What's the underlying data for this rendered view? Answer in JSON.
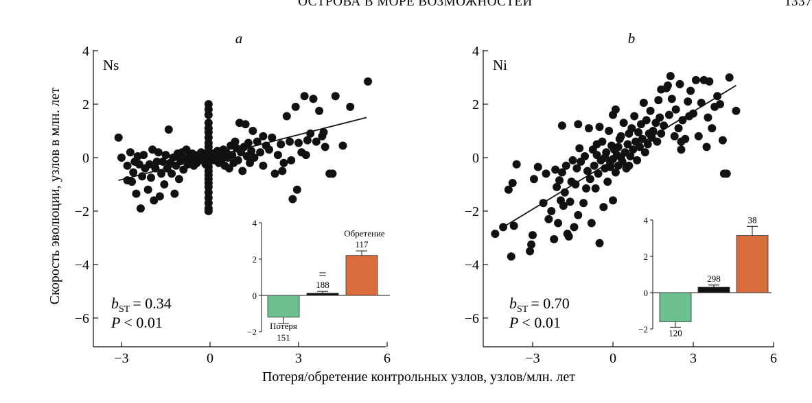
{
  "header": {
    "running_title": "ОСТРОВА В МОРЕ ВОЗМОЖНОСТЕЙ",
    "page_number": "1337"
  },
  "axes": {
    "ylabel": "Скорость эволюции, узлов в млн. лет",
    "xlabel": "Потеря/обретение контрольных узлов, узлов/млн. лет"
  },
  "colors": {
    "points": "#111111",
    "loss": "#6cc18f",
    "gain": "#d96c3b",
    "neutral": "#111111"
  },
  "chart_data": [
    {
      "type": "scatter",
      "panel_letter": "a",
      "panel_id": "Ns",
      "xlim": [
        -4,
        6
      ],
      "ylim": [
        -7,
        4
      ],
      "xticks": [
        "−3",
        "0",
        "3",
        "6"
      ],
      "xtick_values": [
        -3,
        0,
        3,
        6
      ],
      "yticks": [
        "4",
        "2",
        "0",
        "−2",
        "−4",
        "−6"
      ],
      "ytick_values": [
        4,
        2,
        0,
        -2,
        -4,
        -6
      ],
      "stat_b_sub": "ST",
      "stat_b_value": "= 0.34",
      "stat_p_value": "< 0.01",
      "fit_line": [
        [
          -3.1,
          -0.85
        ],
        [
          5.3,
          1.5
        ]
      ],
      "points": [
        [
          -3.1,
          0.75
        ],
        [
          -3.0,
          0.0
        ],
        [
          -2.8,
          -0.85
        ],
        [
          -2.8,
          -0.3
        ],
        [
          -2.7,
          0.2
        ],
        [
          -2.65,
          -0.9
        ],
        [
          -2.6,
          -0.55
        ],
        [
          -2.55,
          -0.15
        ],
        [
          -2.5,
          -1.35
        ],
        [
          -2.45,
          0.05
        ],
        [
          -2.4,
          -0.25
        ],
        [
          -2.35,
          -1.9
        ],
        [
          -2.3,
          -0.7
        ],
        [
          -2.25,
          0.1
        ],
        [
          -2.2,
          -0.4
        ],
        [
          -2.1,
          -1.2
        ],
        [
          -2.05,
          -0.25
        ],
        [
          -2.0,
          -0.75
        ],
        [
          -1.95,
          0.3
        ],
        [
          -1.9,
          -1.6
        ],
        [
          -1.85,
          -0.4
        ],
        [
          -1.8,
          -0.15
        ],
        [
          -1.75,
          0.2
        ],
        [
          -1.7,
          -1.45
        ],
        [
          -1.65,
          -0.6
        ],
        [
          -1.6,
          -0.15
        ],
        [
          -1.55,
          -1.0
        ],
        [
          -1.5,
          0.1
        ],
        [
          -1.45,
          -0.4
        ],
        [
          -1.4,
          1.05
        ],
        [
          -1.35,
          -0.2
        ],
        [
          -1.3,
          -0.6
        ],
        [
          -1.25,
          0.0
        ],
        [
          -1.2,
          -1.35
        ],
        [
          -1.15,
          -0.3
        ],
        [
          -1.1,
          0.15
        ],
        [
          -1.05,
          -0.8
        ],
        [
          -1.0,
          -0.1
        ],
        [
          -0.95,
          0.2
        ],
        [
          -0.9,
          -0.45
        ],
        [
          -0.85,
          -0.05
        ],
        [
          -0.8,
          0.3
        ],
        [
          -0.75,
          -0.25
        ],
        [
          -0.7,
          0.05
        ],
        [
          -0.65,
          -0.15
        ],
        [
          -0.6,
          0.15
        ],
        [
          -0.55,
          -0.3
        ],
        [
          -0.5,
          0.0
        ],
        [
          -0.45,
          -0.2
        ],
        [
          -0.4,
          0.1
        ],
        [
          -0.35,
          -0.1
        ],
        [
          -0.3,
          0.2
        ],
        [
          -0.25,
          -0.05
        ],
        [
          -0.2,
          0.05
        ],
        [
          -0.15,
          -0.25
        ],
        [
          -0.1,
          0.1
        ],
        [
          -0.05,
          2.0
        ],
        [
          -0.05,
          1.8
        ],
        [
          -0.05,
          1.6
        ],
        [
          -0.05,
          1.3
        ],
        [
          -0.05,
          1.1
        ],
        [
          -0.05,
          0.95
        ],
        [
          -0.05,
          0.75
        ],
        [
          -0.05,
          0.55
        ],
        [
          -0.05,
          0.4
        ],
        [
          -0.05,
          0.25
        ],
        [
          -0.05,
          0.1
        ],
        [
          -0.05,
          -0.05
        ],
        [
          -0.05,
          -0.2
        ],
        [
          -0.05,
          -0.35
        ],
        [
          -0.05,
          -0.5
        ],
        [
          -0.05,
          -0.65
        ],
        [
          -0.05,
          -0.8
        ],
        [
          -0.05,
          -0.95
        ],
        [
          -0.05,
          -1.1
        ],
        [
          -0.05,
          -1.3
        ],
        [
          -0.05,
          -1.5
        ],
        [
          -0.05,
          -1.7
        ],
        [
          -0.05,
          -1.9
        ],
        [
          -0.05,
          -2.0
        ],
        [
          0.05,
          0.0
        ],
        [
          0.1,
          0.15
        ],
        [
          0.15,
          -0.1
        ],
        [
          0.2,
          0.05
        ],
        [
          0.25,
          0.25
        ],
        [
          0.3,
          -0.2
        ],
        [
          0.35,
          0.1
        ],
        [
          0.4,
          -0.05
        ],
        [
          0.45,
          0.3
        ],
        [
          0.5,
          -0.3
        ],
        [
          0.55,
          0.2
        ],
        [
          0.6,
          0.0
        ],
        [
          0.65,
          -0.4
        ],
        [
          0.7,
          0.45
        ],
        [
          0.75,
          0.1
        ],
        [
          0.8,
          -0.2
        ],
        [
          0.85,
          0.6
        ],
        [
          0.9,
          0.35
        ],
        [
          0.95,
          -0.1
        ],
        [
          1.0,
          1.3
        ],
        [
          1.05,
          0.2
        ],
        [
          1.1,
          -0.5
        ],
        [
          1.15,
          0.4
        ],
        [
          1.2,
          1.25
        ],
        [
          1.25,
          0.05
        ],
        [
          1.3,
          0.55
        ],
        [
          1.35,
          -0.2
        ],
        [
          1.4,
          0.25
        ],
        [
          1.45,
          1.0
        ],
        [
          1.5,
          0.0
        ],
        [
          1.6,
          0.6
        ],
        [
          1.7,
          0.2
        ],
        [
          1.8,
          -0.3
        ],
        [
          1.9,
          0.45
        ],
        [
          2.0,
          0.3
        ],
        [
          2.1,
          0.75
        ],
        [
          2.2,
          -0.6
        ],
        [
          2.3,
          0.1
        ],
        [
          2.4,
          0.5
        ],
        [
          2.5,
          -0.2
        ],
        [
          2.6,
          1.55
        ],
        [
          2.7,
          0.6
        ],
        [
          2.8,
          -1.55
        ],
        [
          2.9,
          1.9
        ],
        [
          3.0,
          0.55
        ],
        [
          3.1,
          0.2
        ],
        [
          3.2,
          2.3
        ],
        [
          3.3,
          0.65
        ],
        [
          3.4,
          0.9
        ],
        [
          3.5,
          2.2
        ],
        [
          3.6,
          0.6
        ],
        [
          3.7,
          1.75
        ],
        [
          3.8,
          0.8
        ],
        [
          2.75,
          -0.1
        ],
        [
          2.95,
          -1.2
        ],
        [
          3.25,
          0.1
        ],
        [
          1.8,
          0.8
        ],
        [
          2.45,
          -0.5
        ],
        [
          3.9,
          0.4
        ],
        [
          4.05,
          -0.6
        ],
        [
          4.15,
          -0.6
        ],
        [
          4.25,
          2.3
        ],
        [
          4.75,
          1.9
        ],
        [
          5.35,
          2.85
        ],
        [
          4.5,
          0.45
        ],
        [
          3.85,
          0.95
        ]
      ],
      "inset": {
        "ylim": [
          -2,
          4
        ],
        "yticks": [
          "4",
          "2",
          "0",
          "−2"
        ],
        "ytick_values": [
          4,
          2,
          0,
          -2
        ],
        "bars": [
          {
            "label": "Потеря",
            "count": "151",
            "value": -1.2,
            "err": 0.35,
            "color_key": "loss"
          },
          {
            "label": "=",
            "count": "188",
            "value": 0.12,
            "err": 0.1,
            "color_key": "neutral"
          },
          {
            "label": "Обретение",
            "count": "117",
            "value": 2.2,
            "err": 0.25,
            "color_key": "gain"
          }
        ]
      }
    },
    {
      "type": "scatter",
      "panel_letter": "b",
      "panel_id": "Ni",
      "xlim": [
        -5,
        6
      ],
      "ylim": [
        -7,
        4
      ],
      "xticks": [
        "−3",
        "0",
        "3",
        "6"
      ],
      "xtick_values": [
        -3,
        0,
        3,
        6
      ],
      "yticks": [
        "4",
        "2",
        "0",
        "−2",
        "−4",
        "−6"
      ],
      "ytick_values": [
        4,
        2,
        0,
        -2,
        -4,
        -6
      ],
      "stat_b_sub": "ST",
      "stat_b_value": "= 0.70",
      "stat_p_value": "< 0.01",
      "fit_line": [
        [
          -4.1,
          -2.6
        ],
        [
          4.6,
          2.7
        ]
      ],
      "points": [
        [
          -4.4,
          -2.85
        ],
        [
          -3.8,
          -3.7
        ],
        [
          -3.75,
          -0.95
        ],
        [
          -3.7,
          -2.55
        ],
        [
          -3.6,
          -0.25
        ],
        [
          -3.1,
          -3.5
        ],
        [
          -3.05,
          -3.25
        ],
        [
          -3.0,
          -2.9
        ],
        [
          -2.95,
          -0.8
        ],
        [
          -2.8,
          -0.35
        ],
        [
          -2.6,
          -1.7
        ],
        [
          -2.5,
          -0.6
        ],
        [
          -2.4,
          -2.3
        ],
        [
          -2.3,
          -2.0
        ],
        [
          -2.2,
          -3.05
        ],
        [
          -2.15,
          -0.45
        ],
        [
          -2.1,
          -1.1
        ],
        [
          -2.05,
          -2.45
        ],
        [
          -2.0,
          -0.85
        ],
        [
          -1.95,
          -1.6
        ],
        [
          -1.9,
          -0.55
        ],
        [
          -1.85,
          -1.8
        ],
        [
          -1.8,
          -1.3
        ],
        [
          -1.75,
          -0.3
        ],
        [
          -1.7,
          -2.85
        ],
        [
          -1.65,
          -2.95
        ],
        [
          -1.6,
          -1.65
        ],
        [
          -1.55,
          -0.9
        ],
        [
          -1.5,
          -0.1
        ],
        [
          -1.45,
          -2.6
        ],
        [
          -1.4,
          -1.0
        ],
        [
          -1.35,
          -0.4
        ],
        [
          -1.3,
          -2.15
        ],
        [
          -1.25,
          0.35
        ],
        [
          -1.2,
          -0.15
        ],
        [
          -1.1,
          -1.7
        ],
        [
          -1.05,
          0.05
        ],
        [
          -1.0,
          -1.15
        ],
        [
          -0.95,
          -0.5
        ],
        [
          -0.9,
          1.1
        ],
        [
          -0.85,
          -0.8
        ],
        [
          -0.8,
          -2.45
        ],
        [
          -0.75,
          0.3
        ],
        [
          -0.7,
          -0.3
        ],
        [
          -0.65,
          -1.15
        ],
        [
          -0.6,
          0.1
        ],
        [
          -0.55,
          -0.6
        ],
        [
          -0.5,
          -3.2
        ],
        [
          -0.45,
          -0.1
        ],
        [
          -0.4,
          0.6
        ],
        [
          -0.35,
          -1.85
        ],
        [
          -0.3,
          -0.4
        ],
        [
          -0.25,
          0.2
        ],
        [
          -0.2,
          -0.9
        ],
        [
          -0.15,
          1.0
        ],
        [
          -0.1,
          -0.2
        ],
        [
          -0.05,
          0.45
        ],
        [
          0.0,
          -1.6
        ],
        [
          0.0,
          1.6
        ],
        [
          0.0,
          -0.05
        ],
        [
          0.05,
          0.3
        ],
        [
          0.1,
          -0.55
        ],
        [
          0.1,
          1.8
        ],
        [
          0.15,
          0.1
        ],
        [
          0.2,
          -0.3
        ],
        [
          0.25,
          0.7
        ],
        [
          0.3,
          0.0
        ],
        [
          0.35,
          -0.15
        ],
        [
          0.4,
          1.3
        ],
        [
          0.45,
          0.2
        ],
        [
          0.5,
          -0.4
        ],
        [
          0.55,
          0.5
        ],
        [
          0.6,
          0.9
        ],
        [
          0.65,
          0.05
        ],
        [
          0.7,
          1.1
        ],
        [
          0.75,
          0.3
        ],
        [
          0.8,
          1.55
        ],
        [
          0.85,
          0.6
        ],
        [
          0.9,
          -0.1
        ],
        [
          0.95,
          0.95
        ],
        [
          1.0,
          0.4
        ],
        [
          1.05,
          1.25
        ],
        [
          1.1,
          0.7
        ],
        [
          1.15,
          2.05
        ],
        [
          1.2,
          0.2
        ],
        [
          1.25,
          1.4
        ],
        [
          1.3,
          0.5
        ],
        [
          1.35,
          0.9
        ],
        [
          1.4,
          1.75
        ],
        [
          1.45,
          0.75
        ],
        [
          1.5,
          1.0
        ],
        [
          1.6,
          1.3
        ],
        [
          1.65,
          0.6
        ],
        [
          1.7,
          2.15
        ],
        [
          1.75,
          1.5
        ],
        [
          1.8,
          0.9
        ],
        [
          1.9,
          1.2
        ],
        [
          2.0,
          2.6
        ],
        [
          2.05,
          2.7
        ],
        [
          2.1,
          1.6
        ],
        [
          2.15,
          3.05
        ],
        [
          2.2,
          2.2
        ],
        [
          2.3,
          0.8
        ],
        [
          2.35,
          1.8
        ],
        [
          2.45,
          1.1
        ],
        [
          2.5,
          2.75
        ],
        [
          2.55,
          0.6
        ],
        [
          2.6,
          1.4
        ],
        [
          2.7,
          0.7
        ],
        [
          2.8,
          2.1
        ],
        [
          2.85,
          1.55
        ],
        [
          2.9,
          2.5
        ],
        [
          3.0,
          1.65
        ],
        [
          3.1,
          2.9
        ],
        [
          3.2,
          0.8
        ],
        [
          3.3,
          2.05
        ],
        [
          3.4,
          2.9
        ],
        [
          3.5,
          0.4
        ],
        [
          3.6,
          2.85
        ],
        [
          3.7,
          1.1
        ],
        [
          3.8,
          1.9
        ],
        [
          3.9,
          2.3
        ],
        [
          4.0,
          2.0
        ],
        [
          4.1,
          0.65
        ],
        [
          4.15,
          -0.6
        ],
        [
          4.25,
          -0.6
        ],
        [
          4.35,
          3.0
        ],
        [
          4.6,
          1.75
        ],
        [
          -0.3,
          0.0
        ],
        [
          0.3,
          0.8
        ],
        [
          -0.6,
          0.5
        ],
        [
          0.6,
          -0.3
        ],
        [
          0.2,
          0.4
        ],
        [
          -0.1,
          -0.35
        ],
        [
          -1.9,
          1.2
        ],
        [
          -1.3,
          1.25
        ],
        [
          -0.5,
          1.15
        ],
        [
          2.55,
          0.3
        ],
        [
          1.8,
          2.55
        ],
        [
          3.55,
          1.5
        ],
        [
          -4.1,
          -2.6
        ],
        [
          -3.9,
          -1.2
        ]
      ],
      "inset": {
        "ylim": [
          -2,
          4
        ],
        "yticks": [
          "4",
          "2",
          "0",
          "−2"
        ],
        "ytick_values": [
          4,
          2,
          0,
          -2
        ],
        "bars": [
          {
            "label": "",
            "count": "120",
            "value": -1.6,
            "err": 0.3,
            "color_key": "loss"
          },
          {
            "label": "",
            "count": "298",
            "value": 0.3,
            "err": 0.12,
            "color_key": "neutral"
          },
          {
            "label": "",
            "count": "38",
            "value": 3.15,
            "err": 0.5,
            "color_key": "gain"
          }
        ]
      }
    }
  ]
}
